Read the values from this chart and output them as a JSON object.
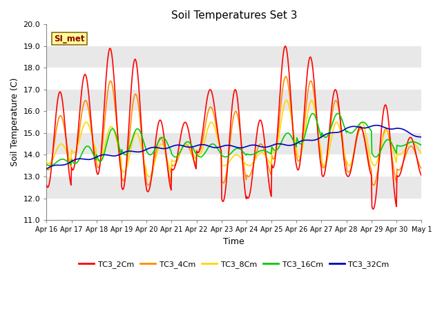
{
  "title": "Soil Temperatures Set 3",
  "xlabel": "Time",
  "ylabel": "Soil Temperature (C)",
  "ylim": [
    11.0,
    20.0
  ],
  "yticks": [
    11.0,
    12.0,
    13.0,
    14.0,
    15.0,
    16.0,
    17.0,
    18.0,
    19.0,
    20.0
  ],
  "xtick_labels": [
    "Apr 16",
    "Apr 17",
    "Apr 18",
    "Apr 19",
    "Apr 20",
    "Apr 21",
    "Apr 22",
    "Apr 23",
    "Apr 24",
    "Apr 25",
    "Apr 26",
    "Apr 27",
    "Apr 28",
    "Apr 29",
    "Apr 30",
    "May 1"
  ],
  "annotation": "SI_met",
  "colors": {
    "TC3_2Cm": "#FF0000",
    "TC3_4Cm": "#FF8C00",
    "TC3_8Cm": "#FFD700",
    "TC3_16Cm": "#00CC00",
    "TC3_32Cm": "#0000BB"
  },
  "line_width": 1.2,
  "band_colors": [
    "#FFFFFF",
    "#E8E8E8"
  ],
  "fig_bg": "#FFFFFF",
  "plot_bg": "#E8E8E8",
  "series_names": [
    "TC3_2Cm",
    "TC3_4Cm",
    "TC3_8Cm",
    "TC3_16Cm",
    "TC3_32Cm"
  ],
  "figsize": [
    6.4,
    4.8
  ],
  "dpi": 100
}
